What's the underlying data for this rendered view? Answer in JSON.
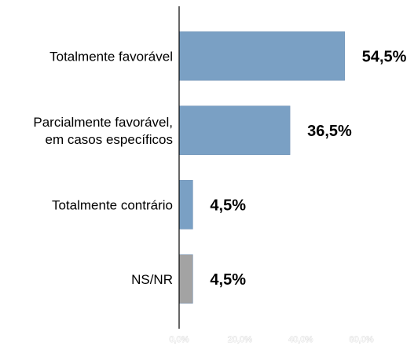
{
  "chart_data": {
    "type": "bar",
    "orientation": "horizontal",
    "categories": [
      [
        "Totalmente favorável"
      ],
      [
        "Parcialmente favorável,",
        "em casos específicos"
      ],
      [
        "Totalmente contrário"
      ],
      [
        "NS/NR"
      ]
    ],
    "values": [
      54.5,
      36.5,
      4.5,
      4.5
    ],
    "value_labels": [
      "54,5%",
      "36,5%",
      "4,5%",
      "4,5%"
    ],
    "bar_colors": [
      "#7aa0c4",
      "#7aa0c4",
      "#7aa0c4",
      "#a3a3a3"
    ],
    "x_ticks": [
      0,
      20,
      40,
      60
    ],
    "x_tick_labels": [
      "0,0%",
      "20,0%",
      "40,0%",
      "60,0%"
    ],
    "xlim": [
      0,
      75
    ],
    "grid": false,
    "legend": "none",
    "title": "",
    "xlabel": "",
    "ylabel": ""
  }
}
